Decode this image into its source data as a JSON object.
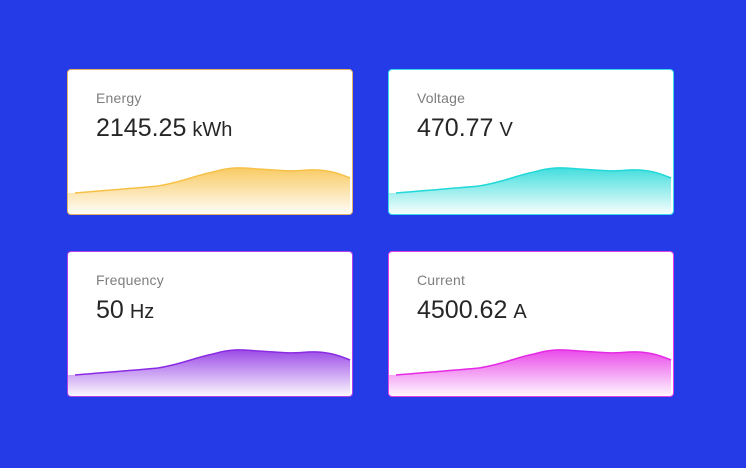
{
  "cards": [
    {
      "id": "energy",
      "label": "Energy",
      "value": "2145.25",
      "unit": "kWh",
      "color": "#f7c148",
      "border": "#e6b26a"
    },
    {
      "id": "voltage",
      "label": "Voltage",
      "value": "470.77",
      "unit": "V",
      "color": "#22d8d8",
      "border": "#35dbe8"
    },
    {
      "id": "frequency",
      "label": "Frequency",
      "value": "50",
      "unit": "Hz",
      "color": "#8a2be2",
      "border": "#b040e8"
    },
    {
      "id": "current",
      "label": "Current",
      "value": "4500.62",
      "unit": "A",
      "color": "#e52ae5",
      "border": "#e040e8"
    }
  ]
}
